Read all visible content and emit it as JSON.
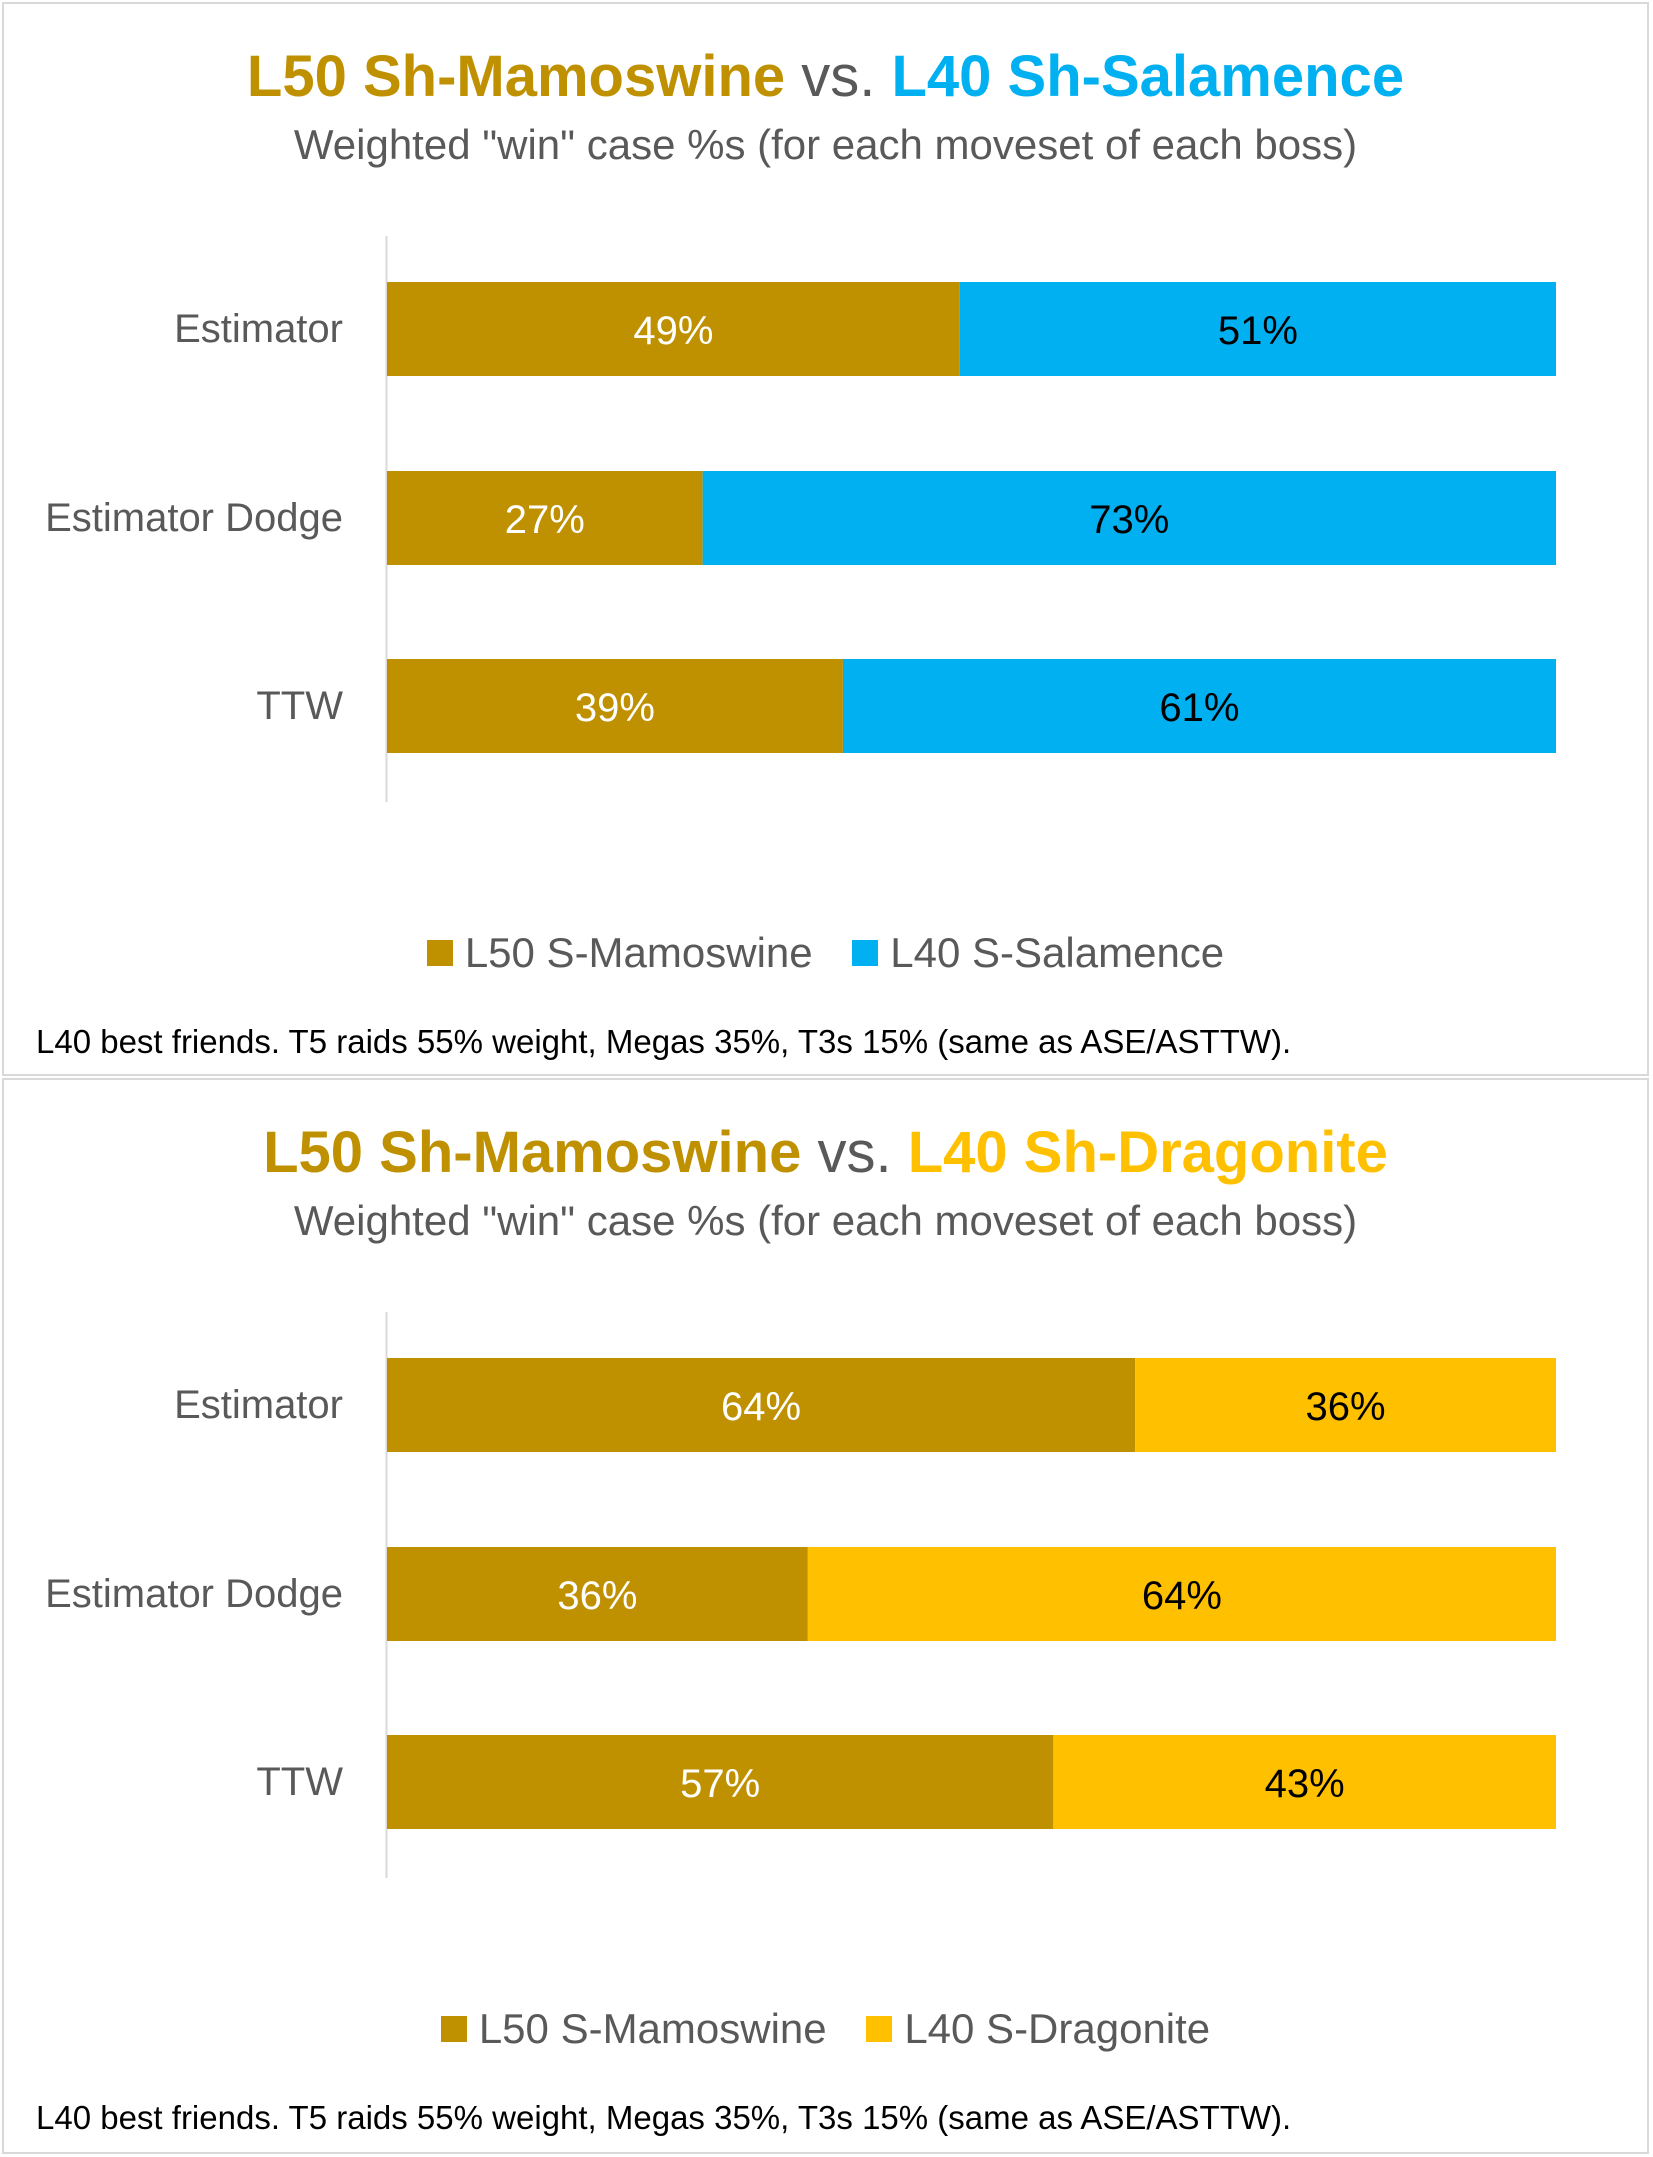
{
  "chart_data": [
    {
      "type": "bar",
      "orientation": "horizontal",
      "stacked": true,
      "title_parts": [
        {
          "text": "L50 Sh-Mamoswine",
          "color": "#BF9000"
        },
        {
          "text": " vs. ",
          "color": "#595959"
        },
        {
          "text": "L40 Sh-Salamence",
          "color": "#00B0F0"
        }
      ],
      "subtitle": "Weighted \"win\" case %s (for each moveset of each boss)",
      "categories": [
        "Estimator",
        "Estimator Dodge",
        "TTW"
      ],
      "series": [
        {
          "name": "L50 S-Mamoswine",
          "color": "#BF9000",
          "label_color": "#ffffff",
          "values": [
            49,
            27,
            39
          ],
          "labels": [
            "49%",
            "27%",
            "39%"
          ]
        },
        {
          "name": "L40 S-Salamence",
          "color": "#00B0F0",
          "label_color": "#000000",
          "values": [
            51,
            73,
            61
          ],
          "labels": [
            "51%",
            "73%",
            "61%"
          ]
        }
      ],
      "xlim": [
        0,
        100
      ],
      "grid": false,
      "legend_position": "bottom",
      "footnote": "L40 best friends. T5 raids 55% weight, Megas 35%, T3s 15% (same as ASE/ASTTW)."
    },
    {
      "type": "bar",
      "orientation": "horizontal",
      "stacked": true,
      "title_parts": [
        {
          "text": "L50 Sh-Mamoswine",
          "color": "#BF9000"
        },
        {
          "text": " vs. ",
          "color": "#595959"
        },
        {
          "text": "L40 Sh-Dragonite",
          "color": "#FFC000"
        }
      ],
      "subtitle": "Weighted \"win\" case %s (for each moveset of each boss)",
      "categories": [
        "Estimator",
        "Estimator Dodge",
        "TTW"
      ],
      "series": [
        {
          "name": "L50 S-Mamoswine",
          "color": "#BF9000",
          "label_color": "#ffffff",
          "values": [
            64,
            36,
            57
          ],
          "labels": [
            "64%",
            "36%",
            "57%"
          ]
        },
        {
          "name": "L40 S-Dragonite",
          "color": "#FFC000",
          "label_color": "#000000",
          "values": [
            36,
            64,
            43
          ],
          "labels": [
            "36%",
            "64%",
            "43%"
          ]
        }
      ],
      "xlim": [
        0,
        100
      ],
      "grid": false,
      "legend_position": "bottom",
      "footnote": "L40 best friends. T5 raids 55% weight, Megas 35%, T3s 15% (same as ASE/ASTTW)."
    }
  ]
}
